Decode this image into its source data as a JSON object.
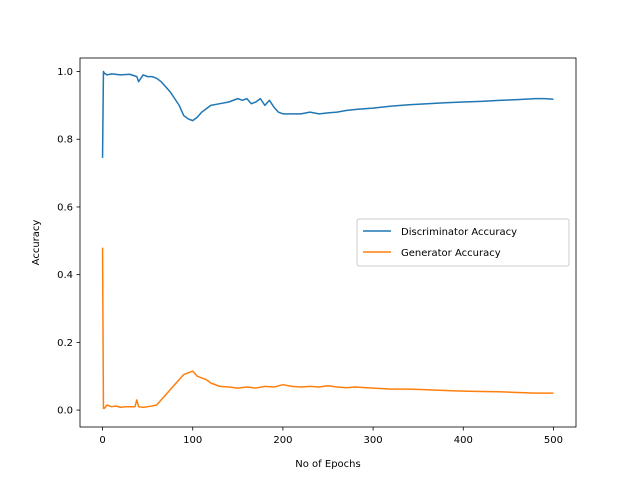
{
  "colors": {
    "series_1": "#1f77b4",
    "series_2": "#ff7f0e",
    "axes": "#000000",
    "legend_border": "#cccccc"
  },
  "chart_data": {
    "type": "line",
    "title": "",
    "xlabel": "No of Epochs",
    "ylabel": "Accuracy",
    "xlim": [
      -25,
      525
    ],
    "ylim": [
      -0.05,
      1.04
    ],
    "xticks": [
      0,
      100,
      200,
      300,
      400,
      500
    ],
    "xtick_labels": [
      "0",
      "100",
      "200",
      "300",
      "400",
      "500"
    ],
    "yticks": [
      0.0,
      0.2,
      0.4,
      0.6,
      0.8,
      1.0
    ],
    "ytick_labels": [
      "0.0",
      "0.2",
      "0.4",
      "0.6",
      "0.8",
      "1.0"
    ],
    "grid": false,
    "legend_position": "center-right",
    "series": [
      {
        "name": "Discriminator Accuracy",
        "color": "#1f77b4",
        "x": [
          0,
          1,
          2,
          5,
          10,
          20,
          30,
          38,
          40,
          45,
          50,
          55,
          60,
          65,
          70,
          75,
          80,
          85,
          90,
          95,
          100,
          105,
          110,
          115,
          120,
          130,
          140,
          150,
          155,
          160,
          165,
          170,
          175,
          180,
          185,
          190,
          195,
          200,
          210,
          220,
          230,
          240,
          250,
          260,
          270,
          280,
          290,
          300,
          320,
          340,
          360,
          380,
          400,
          420,
          440,
          460,
          480,
          490,
          500
        ],
        "y": [
          0.745,
          1.0,
          0.995,
          0.99,
          0.993,
          0.99,
          0.992,
          0.985,
          0.97,
          0.99,
          0.985,
          0.985,
          0.98,
          0.97,
          0.955,
          0.94,
          0.92,
          0.9,
          0.87,
          0.86,
          0.855,
          0.865,
          0.88,
          0.89,
          0.9,
          0.905,
          0.91,
          0.92,
          0.915,
          0.92,
          0.905,
          0.91,
          0.92,
          0.9,
          0.915,
          0.895,
          0.88,
          0.875,
          0.875,
          0.875,
          0.88,
          0.875,
          0.878,
          0.88,
          0.885,
          0.888,
          0.89,
          0.892,
          0.898,
          0.902,
          0.905,
          0.908,
          0.91,
          0.912,
          0.915,
          0.917,
          0.92,
          0.92,
          0.918
        ]
      },
      {
        "name": "Generator Accuracy",
        "color": "#ff7f0e",
        "x": [
          0,
          1,
          2,
          5,
          10,
          15,
          20,
          25,
          30,
          36,
          38,
          40,
          45,
          50,
          55,
          60,
          65,
          70,
          75,
          80,
          85,
          90,
          95,
          100,
          105,
          110,
          115,
          120,
          130,
          140,
          150,
          160,
          170,
          180,
          190,
          200,
          210,
          220,
          230,
          240,
          250,
          260,
          270,
          280,
          300,
          320,
          340,
          360,
          380,
          400,
          420,
          440,
          460,
          480,
          490,
          500
        ],
        "y": [
          0.48,
          0.005,
          0.005,
          0.015,
          0.01,
          0.012,
          0.008,
          0.01,
          0.01,
          0.01,
          0.03,
          0.01,
          0.008,
          0.01,
          0.012,
          0.015,
          0.03,
          0.045,
          0.06,
          0.075,
          0.09,
          0.105,
          0.11,
          0.115,
          0.1,
          0.095,
          0.09,
          0.08,
          0.07,
          0.068,
          0.065,
          0.068,
          0.065,
          0.07,
          0.068,
          0.075,
          0.07,
          0.068,
          0.07,
          0.068,
          0.072,
          0.068,
          0.066,
          0.068,
          0.065,
          0.062,
          0.062,
          0.06,
          0.058,
          0.056,
          0.055,
          0.054,
          0.052,
          0.05,
          0.05,
          0.05
        ]
      }
    ]
  }
}
